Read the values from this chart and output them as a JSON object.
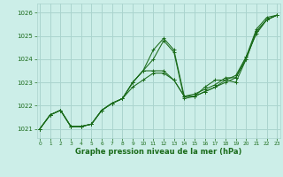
{
  "title": "Graphe pression niveau de la mer (hPa)",
  "bg_color": "#cceee8",
  "grid_color": "#aad4ce",
  "line_color": "#1a6b1a",
  "x_ticks": [
    0,
    1,
    2,
    3,
    4,
    5,
    6,
    7,
    8,
    9,
    10,
    11,
    12,
    13,
    14,
    15,
    16,
    17,
    18,
    19,
    20,
    21,
    22,
    23
  ],
  "y_ticks": [
    1021,
    1022,
    1023,
    1024,
    1025,
    1026
  ],
  "ylim": [
    1020.6,
    1026.4
  ],
  "xlim": [
    -0.3,
    23.3
  ],
  "series": [
    [
      1021.0,
      1021.6,
      1021.8,
      1021.1,
      1021.1,
      1021.2,
      1021.8,
      1022.1,
      1022.3,
      1023.0,
      1023.5,
      1024.4,
      1024.9,
      1024.4,
      1022.4,
      1022.4,
      1022.6,
      1022.8,
      1023.1,
      1023.3,
      1024.1,
      1025.3,
      1025.8,
      1025.9
    ],
    [
      1021.0,
      1021.6,
      1021.8,
      1021.1,
      1021.1,
      1021.2,
      1021.8,
      1022.1,
      1022.3,
      1022.8,
      1023.1,
      1023.4,
      1023.4,
      1023.1,
      1022.4,
      1022.4,
      1022.6,
      1022.8,
      1023.0,
      1023.2,
      1024.0,
      1025.2,
      1025.7,
      1025.9
    ],
    [
      1021.0,
      1021.6,
      1021.8,
      1021.1,
      1021.1,
      1021.2,
      1021.8,
      1022.1,
      1022.3,
      1023.0,
      1023.5,
      1024.0,
      1024.8,
      1024.3,
      1022.3,
      1022.4,
      1022.8,
      1023.1,
      1023.1,
      1023.0,
      1024.0,
      1025.2,
      1025.7,
      1025.9
    ],
    [
      1021.0,
      1021.6,
      1021.8,
      1021.1,
      1021.1,
      1021.2,
      1021.8,
      1022.1,
      1022.3,
      1023.0,
      1023.5,
      1023.5,
      1023.5,
      1023.1,
      1022.4,
      1022.5,
      1022.7,
      1022.9,
      1023.2,
      1023.2,
      1024.1,
      1025.1,
      1025.7,
      1025.9
    ]
  ]
}
